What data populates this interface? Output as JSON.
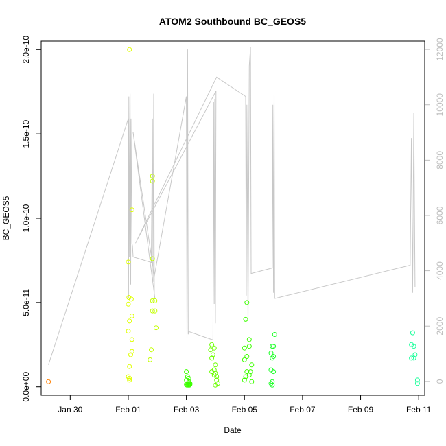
{
  "chart_data": {
    "type": "scatter",
    "title": "ATOM2 Southbound BC_GEOS5",
    "xlabel": "Date",
    "ylabel": "BC_GEOS5",
    "x_axis": {
      "type": "date",
      "range": [
        "2016-01-29T00:00",
        "2016-02-11T05:00"
      ],
      "ticks": [
        {
          "date": "2016-01-30",
          "label": "Jan 30"
        },
        {
          "date": "2016-02-01",
          "label": "Feb 01"
        },
        {
          "date": "2016-02-03",
          "label": "Feb 03"
        },
        {
          "date": "2016-02-05",
          "label": "Feb 05"
        },
        {
          "date": "2016-02-07",
          "label": "Feb 07"
        },
        {
          "date": "2016-02-09",
          "label": "Feb 09"
        },
        {
          "date": "2016-02-11",
          "label": "Feb 11"
        }
      ]
    },
    "y_axis": {
      "range": [
        -5e-12,
        2.05e-10
      ],
      "ticks": [
        {
          "value": 0,
          "label": "0.0e+00"
        },
        {
          "value": 5e-11,
          "label": "5.0e-11"
        },
        {
          "value": 1e-10,
          "label": "1.0e-10"
        },
        {
          "value": 1.5e-10,
          "label": "1.5e-10"
        },
        {
          "value": 2e-10,
          "label": "2.0e-10"
        }
      ]
    },
    "y2_axis": {
      "range": [
        -500,
        12300
      ],
      "color": "#bdbdbd",
      "ticks": [
        {
          "value": 0,
          "label": "0"
        },
        {
          "value": 2000,
          "label": "2000"
        },
        {
          "value": 4000,
          "label": "4000"
        },
        {
          "value": 6000,
          "label": "6000"
        },
        {
          "value": 8000,
          "label": "8000"
        },
        {
          "value": 10000,
          "label": "10000"
        },
        {
          "value": 12000,
          "label": "12000"
        }
      ]
    },
    "point_groups": [
      {
        "color": "#FF7F00",
        "points": [
          [
            "2016-01-29T06:00",
            3e-12
          ]
        ]
      },
      {
        "color": "#DFFF00",
        "points": [
          [
            "2016-02-01T01:00",
            2e-10
          ],
          [
            "2016-02-01T03:00",
            1.05e-10
          ],
          [
            "2016-02-01T00:00",
            7.4e-11
          ],
          [
            "2016-02-01T00:30",
            5.3e-11
          ],
          [
            "2016-02-01T02:30",
            5.2e-11
          ],
          [
            "2016-02-01T00:00",
            4.9e-11
          ],
          [
            "2016-02-01T03:00",
            4.2e-11
          ],
          [
            "2016-02-01T01:00",
            3.9e-11
          ],
          [
            "2016-02-01T00:00",
            3.3e-11
          ],
          [
            "2016-02-01T03:00",
            2.8e-11
          ],
          [
            "2016-02-01T03:00",
            2.1e-11
          ],
          [
            "2016-02-01T02:00",
            1.9e-11
          ],
          [
            "2016-02-01T01:00",
            1.2e-11
          ],
          [
            "2016-02-01T00:00",
            6e-12
          ],
          [
            "2016-02-01T01:00",
            5e-12
          ],
          [
            "2016-02-01T01:00",
            4e-12
          ]
        ]
      },
      {
        "color": "#C3FF00",
        "points": [
          [
            "2016-02-01T20:00",
            1.25e-10
          ],
          [
            "2016-02-01T20:00",
            1.22e-10
          ],
          [
            "2016-02-01T20:00",
            7.6e-11
          ],
          [
            "2016-02-01T20:00",
            5.1e-11
          ],
          [
            "2016-02-01T22:00",
            5.1e-11
          ],
          [
            "2016-02-01T20:00",
            4.5e-11
          ],
          [
            "2016-02-01T22:00",
            4.5e-11
          ],
          [
            "2016-02-01T23:00",
            3.5e-11
          ],
          [
            "2016-02-01T19:00",
            2.2e-11
          ],
          [
            "2016-02-01T18:00",
            1.6e-11
          ]
        ]
      },
      {
        "color": "#3DFF00",
        "points": [
          [
            "2016-02-03T00:00",
            9e-12
          ],
          [
            "2016-02-03T01:00",
            6e-12
          ],
          [
            "2016-02-03T02:00",
            5e-12
          ],
          [
            "2016-02-03T00:00",
            4e-12
          ],
          [
            "2016-02-03T02:00",
            3e-12
          ],
          [
            "2016-02-03T03:00",
            2e-12
          ],
          [
            "2016-02-03T00:00",
            1.5e-12
          ],
          [
            "2016-02-03T01:00",
            1.5e-12
          ],
          [
            "2016-02-03T02:00",
            1.5e-12
          ],
          [
            "2016-02-03T03:00",
            1.5e-12
          ],
          [
            "2016-02-03T00:30",
            1e-12
          ],
          [
            "2016-02-03T01:30",
            1e-12
          ],
          [
            "2016-02-03T02:30",
            1e-12
          ]
        ]
      },
      {
        "color": "#6BFF00",
        "points": [
          [
            "2016-02-03T21:00",
            2.5e-11
          ],
          [
            "2016-02-03T23:00",
            2.3e-11
          ],
          [
            "2016-02-03T20:00",
            2.2e-11
          ],
          [
            "2016-02-03T22:00",
            1.9e-11
          ],
          [
            "2016-02-03T21:00",
            1.7e-11
          ],
          [
            "2016-02-04T00:00",
            1.3e-11
          ],
          [
            "2016-02-03T23:00",
            1e-11
          ],
          [
            "2016-02-03T21:00",
            9e-12
          ],
          [
            "2016-02-04T00:00",
            8e-12
          ],
          [
            "2016-02-03T23:00",
            7e-12
          ],
          [
            "2016-02-04T01:00",
            6e-12
          ],
          [
            "2016-02-04T01:00",
            4e-12
          ],
          [
            "2016-02-04T02:00",
            2e-12
          ],
          [
            "2016-02-04T00:00",
            1e-12
          ]
        ]
      },
      {
        "color": "#3DFF00",
        "points": [
          [
            "2016-02-05T02:00",
            5e-11
          ],
          [
            "2016-02-05T01:00",
            4e-11
          ],
          [
            "2016-02-05T04:00",
            2.8e-11
          ],
          [
            "2016-02-05T04:00",
            2.4e-11
          ],
          [
            "2016-02-05T00:00",
            2.3e-11
          ],
          [
            "2016-02-05T02:00",
            1.8e-11
          ],
          [
            "2016-02-05T00:00",
            1.6e-11
          ],
          [
            "2016-02-05T06:00",
            1.3e-11
          ],
          [
            "2016-02-05T02:00",
            9e-12
          ],
          [
            "2016-02-05T05:00",
            9e-12
          ],
          [
            "2016-02-05T04:00",
            7e-12
          ],
          [
            "2016-02-05T01:00",
            6e-12
          ],
          [
            "2016-02-05T00:00",
            4e-12
          ],
          [
            "2016-02-05T06:00",
            3e-12
          ]
        ]
      },
      {
        "color": "#1FFF2A",
        "points": [
          [
            "2016-02-06T01:00",
            3.1e-11
          ],
          [
            "2016-02-05T23:00",
            2.4e-11
          ],
          [
            "2016-02-06T00:00",
            2.4e-11
          ],
          [
            "2016-02-05T22:00",
            2e-11
          ],
          [
            "2016-02-06T00:00",
            1.8e-11
          ],
          [
            "2016-02-05T23:00",
            1.7e-11
          ],
          [
            "2016-02-05T22:00",
            1e-11
          ],
          [
            "2016-02-06T00:00",
            9e-12
          ],
          [
            "2016-02-05T23:00",
            3e-12
          ],
          [
            "2016-02-05T22:00",
            2e-12
          ],
          [
            "2016-02-05T23:00",
            1e-12
          ]
        ]
      },
      {
        "color": "#19FF9A",
        "points": [
          [
            "2016-02-10T19:00",
            3.2e-11
          ],
          [
            "2016-02-10T18:00",
            2.5e-11
          ],
          [
            "2016-02-10T20:00",
            2.4e-11
          ],
          [
            "2016-02-10T21:00",
            1.9e-11
          ],
          [
            "2016-02-10T18:00",
            1.7e-11
          ],
          [
            "2016-02-10T20:00",
            1.7e-11
          ],
          [
            "2016-02-10T23:00",
            4e-12
          ],
          [
            "2016-02-10T23:00",
            2e-12
          ]
        ]
      }
    ],
    "secondary_line": {
      "color": "#c8c8c8",
      "axis": "right",
      "points": [
        [
          "2016-01-29T06:00",
          600
        ],
        [
          "2016-02-01T00:00",
          9500
        ],
        [
          "2016-02-01T00:15",
          3000
        ],
        [
          "2016-02-01T00:30",
          10300
        ],
        [
          "2016-02-01T01:00",
          4500
        ],
        [
          "2016-02-01T01:30",
          10400
        ],
        [
          "2016-02-01T02:00",
          3500
        ],
        [
          "2016-02-01T02:15",
          9500
        ],
        [
          "2016-02-01T03:00",
          5000
        ],
        [
          "2016-02-01T03:30",
          4900
        ],
        [
          "2016-02-01T04:00",
          4500
        ],
        [
          "2016-02-01T19:00",
          4300
        ],
        [
          "2016-02-01T20:00",
          9500
        ],
        [
          "2016-02-01T20:30",
          3600
        ],
        [
          "2016-02-01T21:00",
          10400
        ],
        [
          "2016-02-01T21:30",
          3100
        ],
        [
          "2016-02-01T22:00",
          3000
        ],
        [
          "2016-02-01T04:00",
          9000
        ],
        [
          "2016-02-01T21:30",
          3800
        ],
        [
          "2016-02-03T00:00",
          10300
        ],
        [
          "2016-02-03T00:30",
          1500
        ],
        [
          "2016-02-03T01:00",
          12000
        ],
        [
          "2016-02-03T01:30",
          1700
        ],
        [
          "2016-02-03T02:00",
          1800
        ],
        [
          "2016-02-03T22:00",
          1500
        ],
        [
          "2016-02-03T22:30",
          10100
        ],
        [
          "2016-02-03T23:00",
          2800
        ],
        [
          "2016-02-03T23:30",
          10200
        ],
        [
          "2016-02-04T00:00",
          2100
        ],
        [
          "2016-02-04T00:30",
          10500
        ],
        [
          "2016-02-01T06:00",
          5000
        ],
        [
          "2016-02-04T01:00",
          11000
        ],
        [
          "2016-02-05T01:00",
          10300
        ],
        [
          "2016-02-05T01:30",
          3100
        ],
        [
          "2016-02-05T02:00",
          10000
        ],
        [
          "2016-02-05T03:00",
          2100
        ],
        [
          "2016-02-05T04:00",
          11400
        ],
        [
          "2016-02-05T05:00",
          12100
        ],
        [
          "2016-02-05T05:30",
          3900
        ],
        [
          "2016-02-05T23:00",
          4100
        ],
        [
          "2016-02-05T23:30",
          10000
        ],
        [
          "2016-02-06T00:00",
          3200
        ],
        [
          "2016-02-06T00:30",
          10400
        ],
        [
          "2016-02-06T01:00",
          3000
        ],
        [
          "2016-02-06T01:30",
          3000
        ],
        [
          "2016-02-10T17:00",
          4200
        ],
        [
          "2016-02-10T18:00",
          8800
        ],
        [
          "2016-02-10T19:00",
          3200
        ],
        [
          "2016-02-10T20:00",
          9700
        ],
        [
          "2016-02-10T21:00",
          3400
        ]
      ]
    }
  }
}
